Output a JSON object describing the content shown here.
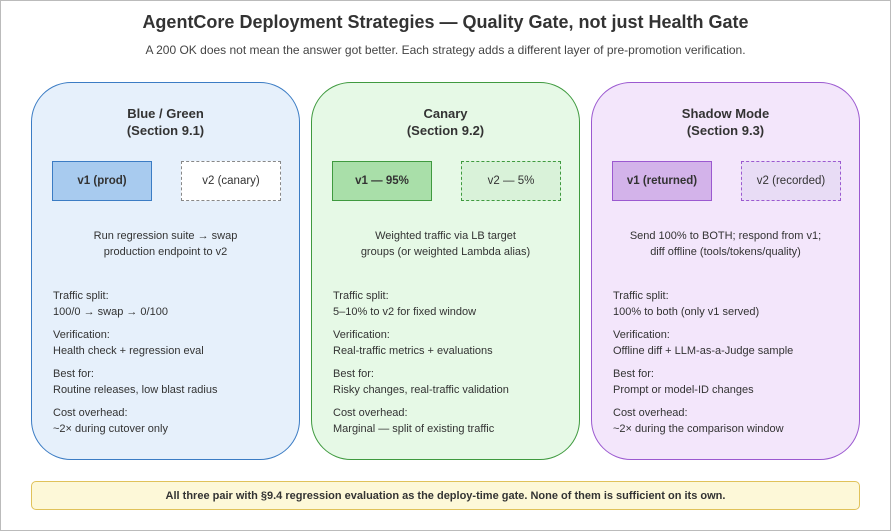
{
  "title": "AgentCore Deployment Strategies — Quality Gate, not just Health Gate",
  "subtitle": "A 200 OK does not mean the answer got better. Each strategy adds a different layer of pre-promotion verification.",
  "cards": [
    {
      "title": "Blue / Green",
      "section": "(Section 9.1)",
      "box1": "v1 (prod)",
      "box2": "v2 (canary)",
      "desc1": "Run regression suite → swap",
      "desc2": "production endpoint to v2",
      "details": [
        {
          "label": "Traffic split:",
          "value": "100/0 → swap → 0/100"
        },
        {
          "label": "Verification:",
          "value": "Health check + regression eval"
        },
        {
          "label": "Best for:",
          "value": "Routine releases, low blast radius"
        },
        {
          "label": "Cost overhead:",
          "value": "~2× during cutover only"
        }
      ],
      "colors": {
        "bg": "#e6f0fb",
        "border": "#3b7cc4",
        "box1_bg": "#a8cbef",
        "box1_border": "#3b7cc4",
        "box2_bg": "#ffffff",
        "box2_border": "#888888"
      }
    },
    {
      "title": "Canary",
      "section": "(Section 9.2)",
      "box1": "v1 — 95%",
      "box2": "v2 — 5%",
      "desc1": "Weighted traffic via LB target",
      "desc2": "groups (or weighted Lambda alias)",
      "details": [
        {
          "label": "Traffic split:",
          "value": "5–10% to v2 for fixed window"
        },
        {
          "label": "Verification:",
          "value": "Real-traffic metrics + evaluations"
        },
        {
          "label": "Best for:",
          "value": "Risky changes, real-traffic validation"
        },
        {
          "label": "Cost overhead:",
          "value": "Marginal — split of existing traffic"
        }
      ],
      "colors": {
        "bg": "#e6f9e6",
        "border": "#3f9a3f",
        "box1_bg": "#a9dfa9",
        "box1_border": "#3f9a3f",
        "box2_bg": "#d9f2d9",
        "box2_border": "#3f9a3f"
      }
    },
    {
      "title": "Shadow Mode",
      "section": "(Section 9.3)",
      "box1": "v1 (returned)",
      "box2": "v2 (recorded)",
      "desc1": "Send 100% to BOTH; respond from v1;",
      "desc2": "diff offline (tools/tokens/quality)",
      "details": [
        {
          "label": "Traffic split:",
          "value": "100% to both (only v1 served)"
        },
        {
          "label": "Verification:",
          "value": "Offline diff + LLM-as-a-Judge sample"
        },
        {
          "label": "Best for:",
          "value": "Prompt or model-ID changes"
        },
        {
          "label": "Cost overhead:",
          "value": "~2× during the comparison window"
        }
      ],
      "colors": {
        "bg": "#f3e6fb",
        "border": "#9b59d0",
        "box1_bg": "#d3b3ea",
        "box1_border": "#9b59d0",
        "box2_bg": "#e8dcf5",
        "box2_border": "#9b59d0"
      }
    }
  ],
  "footer": "All three pair with §9.4 regression evaluation as the deploy-time gate. None of them is sufficient on its own."
}
